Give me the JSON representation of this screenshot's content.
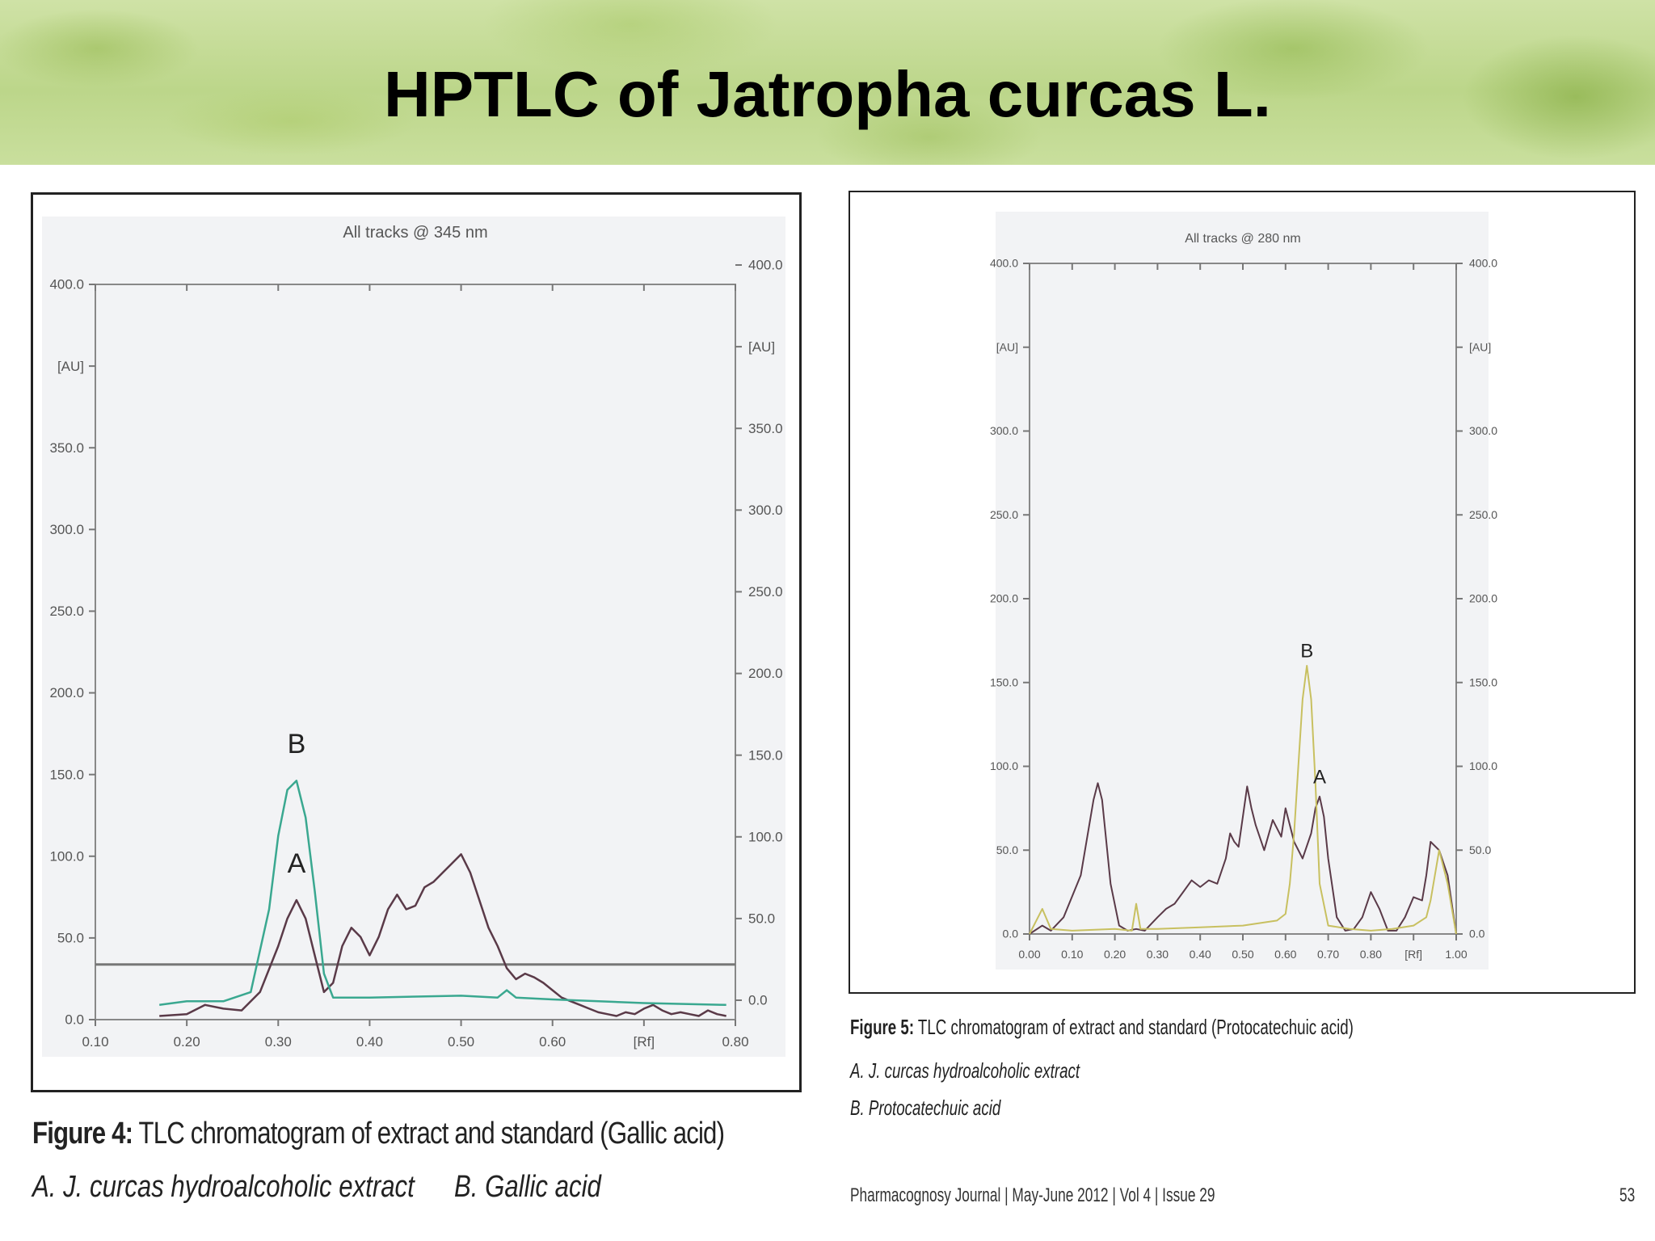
{
  "slide": {
    "title": "HPTLC of Jatropha curcas L."
  },
  "figure4": {
    "caption_label": "Figure 4:",
    "caption_text": " TLC chromatogram of extract and standard (Gallic acid)",
    "caption_a": "A. J. curcas hydroalcoholic extract",
    "caption_b": "B. Gallic acid"
  },
  "figure5": {
    "caption_label": "Figure 5:",
    "caption_text": " TLC chromatogram of extract and standard (Protocatechuic acid)",
    "caption_a": "A. J. curcas hydroalcoholic extract",
    "caption_b": "B. Protocatechuic acid"
  },
  "footer": {
    "journal": "Pharmacognosy Journal | May-June 2012 | Vol 4 | Issue 29",
    "page": "53"
  },
  "chart_data": [
    {
      "type": "line",
      "title": "All tracks @ 345 nm",
      "xlabel": "[Rf]",
      "ylabel": "[AU]",
      "xlim": [
        0.1,
        0.8
      ],
      "ylim": [
        0,
        400
      ],
      "x_ticks": [
        "0.10",
        "0.20",
        "0.30",
        "0.40",
        "0.50",
        "0.60",
        "[Rf]",
        "0.80"
      ],
      "y_ticks_left": [
        "0.0",
        "50.0",
        "100.0",
        "150.0",
        "200.0",
        "250.0",
        "300.0",
        "350.0",
        "[AU]",
        "400.0"
      ],
      "y_ticks_right": [
        "0.0",
        "50.0",
        "100.0",
        "150.0",
        "200.0",
        "250.0",
        "300.0",
        "350.0",
        "[AU]",
        "400.0"
      ],
      "colors": {
        "A": "#5a3a48",
        "B": "#3aa890"
      },
      "peak_labels": [
        {
          "text": "B",
          "x": 0.32,
          "y": 145
        },
        {
          "text": "A",
          "x": 0.32,
          "y": 80
        }
      ],
      "series": [
        {
          "name": "A",
          "x": [
            0.17,
            0.2,
            0.22,
            0.24,
            0.26,
            0.28,
            0.3,
            0.31,
            0.32,
            0.33,
            0.34,
            0.35,
            0.36,
            0.37,
            0.38,
            0.39,
            0.4,
            0.41,
            0.42,
            0.43,
            0.44,
            0.45,
            0.46,
            0.47,
            0.48,
            0.49,
            0.5,
            0.51,
            0.52,
            0.53,
            0.54,
            0.55,
            0.56,
            0.57,
            0.58,
            0.59,
            0.6,
            0.61,
            0.62,
            0.63,
            0.64,
            0.65,
            0.66,
            0.67,
            0.68,
            0.69,
            0.7,
            0.71,
            0.72,
            0.73,
            0.74,
            0.75,
            0.76,
            0.77,
            0.78,
            0.79
          ],
          "y": [
            2,
            3,
            8,
            6,
            5,
            15,
            40,
            55,
            65,
            55,
            35,
            15,
            20,
            40,
            50,
            45,
            35,
            45,
            60,
            68,
            60,
            62,
            72,
            75,
            80,
            85,
            90,
            80,
            65,
            50,
            40,
            28,
            22,
            25,
            23,
            20,
            16,
            12,
            10,
            8,
            6,
            4,
            3,
            2,
            4,
            3,
            6,
            8,
            5,
            3,
            4,
            3,
            2,
            5,
            3,
            2
          ]
        },
        {
          "name": "B",
          "x": [
            0.17,
            0.2,
            0.24,
            0.27,
            0.29,
            0.3,
            0.31,
            0.32,
            0.33,
            0.34,
            0.35,
            0.36,
            0.4,
            0.5,
            0.54,
            0.55,
            0.56,
            0.6,
            0.7,
            0.79
          ],
          "y": [
            8,
            10,
            10,
            15,
            60,
            100,
            125,
            130,
            110,
            70,
            25,
            12,
            12,
            13,
            12,
            16,
            12,
            11,
            9,
            8
          ]
        }
      ]
    },
    {
      "type": "line",
      "title": "All tracks @ 280 nm",
      "xlabel": "[Rf]",
      "ylabel": "[AU]",
      "xlim": [
        0.0,
        1.0
      ],
      "ylim": [
        0,
        400
      ],
      "x_ticks": [
        "0.00",
        "0.10",
        "0.20",
        "0.30",
        "0.40",
        "0.50",
        "0.60",
        "0.70",
        "0.80",
        "[Rf]",
        "1.00"
      ],
      "y_ticks_left": [
        "0.0",
        "50.0",
        "100.0",
        "150.0",
        "200.0",
        "250.0",
        "300.0",
        "[AU]",
        "400.0"
      ],
      "y_ticks_right": [
        "0.0",
        "50.0",
        "100.0",
        "150.0",
        "200.0",
        "250.0",
        "300.0",
        "[AU]",
        "400.0"
      ],
      "colors": {
        "A": "#5a3a48",
        "B": "#c8c060"
      },
      "peak_labels": [
        {
          "text": "B",
          "x": 0.65,
          "y": 165
        },
        {
          "text": "A",
          "x": 0.68,
          "y": 90
        }
      ],
      "series": [
        {
          "name": "A",
          "x": [
            0.0,
            0.03,
            0.05,
            0.08,
            0.12,
            0.15,
            0.16,
            0.17,
            0.19,
            0.21,
            0.23,
            0.25,
            0.27,
            0.3,
            0.32,
            0.34,
            0.36,
            0.38,
            0.4,
            0.42,
            0.44,
            0.46,
            0.47,
            0.48,
            0.49,
            0.5,
            0.51,
            0.52,
            0.53,
            0.55,
            0.57,
            0.59,
            0.6,
            0.62,
            0.64,
            0.66,
            0.67,
            0.68,
            0.69,
            0.7,
            0.72,
            0.74,
            0.76,
            0.78,
            0.8,
            0.82,
            0.84,
            0.86,
            0.88,
            0.9,
            0.92,
            0.93,
            0.94,
            0.96,
            0.98,
            1.0
          ],
          "y": [
            0,
            5,
            2,
            10,
            35,
            80,
            90,
            80,
            30,
            5,
            2,
            3,
            2,
            10,
            15,
            18,
            25,
            32,
            28,
            32,
            30,
            45,
            60,
            55,
            52,
            70,
            88,
            75,
            65,
            50,
            68,
            58,
            75,
            55,
            45,
            60,
            75,
            82,
            70,
            45,
            10,
            2,
            3,
            10,
            25,
            15,
            2,
            2,
            10,
            22,
            20,
            35,
            55,
            50,
            35,
            0
          ]
        },
        {
          "name": "B",
          "x": [
            0.0,
            0.03,
            0.05,
            0.1,
            0.2,
            0.24,
            0.25,
            0.26,
            0.3,
            0.4,
            0.5,
            0.58,
            0.6,
            0.61,
            0.62,
            0.63,
            0.64,
            0.65,
            0.66,
            0.67,
            0.68,
            0.7,
            0.75,
            0.8,
            0.85,
            0.9,
            0.93,
            0.94,
            0.96,
            0.98,
            1.0
          ],
          "y": [
            0,
            15,
            3,
            2,
            3,
            2,
            18,
            3,
            3,
            4,
            5,
            8,
            12,
            30,
            60,
            100,
            140,
            160,
            140,
            90,
            30,
            5,
            3,
            2,
            3,
            5,
            10,
            20,
            50,
            30,
            0
          ]
        }
      ]
    }
  ]
}
